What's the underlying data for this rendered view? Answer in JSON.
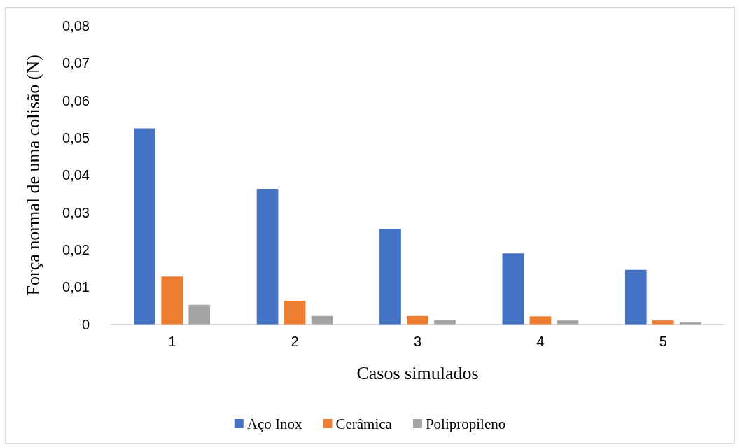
{
  "chart_data": {
    "type": "bar",
    "xlabel": "Casos simulados",
    "ylabel": "Força normal de uma colisão (N)",
    "categories": [
      "1",
      "2",
      "3",
      "4",
      "5"
    ],
    "series": [
      {
        "name": "Aço Inox",
        "color": "#4472c4",
        "values": [
          0.0525,
          0.0363,
          0.0255,
          0.019,
          0.0146
        ]
      },
      {
        "name": "Cerâmica",
        "color": "#ed7d31",
        "values": [
          0.0128,
          0.0063,
          0.0022,
          0.0021,
          0.001
        ]
      },
      {
        "name": "Polipropileno",
        "color": "#a5a5a5",
        "values": [
          0.0052,
          0.0022,
          0.0011,
          0.001,
          0.0005
        ]
      }
    ],
    "ylim": [
      0,
      0.08
    ],
    "yticks": [
      0,
      {
        "value": 0.01,
        "label": "0,01"
      },
      {
        "value": 0.02,
        "label": "0,02"
      },
      {
        "value": 0.03,
        "label": "0,03"
      },
      {
        "value": 0.04,
        "label": "0,04"
      },
      {
        "value": 0.05,
        "label": "0,05"
      },
      {
        "value": 0.06,
        "label": "0,06"
      },
      {
        "value": 0.07,
        "label": "0,07"
      },
      {
        "value": 0.08,
        "label": "0,08"
      }
    ],
    "grid": false,
    "legend": "bottom"
  }
}
